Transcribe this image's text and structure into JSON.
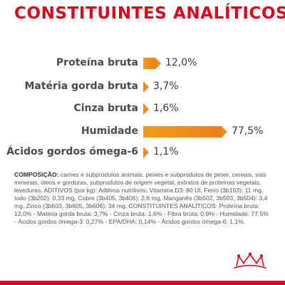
{
  "title": "CONSTITUINTES ANALÍTICOS",
  "nutrients": [
    {
      "label": "Proteína bruta",
      "value_text": "12,0%",
      "value": 12.0
    },
    {
      "label": "Matéria gorda bruta",
      "value_text": "3,7%",
      "value": 3.7
    },
    {
      "label": "Cinza bruta",
      "value_text": "1,6%",
      "value": 1.6
    },
    {
      "label": "Humidade",
      "value_text": "77,5%",
      "value": 77.5
    },
    {
      "label": "Ácidos gordos ómega-6",
      "value_text": "1,1%",
      "value": 1.1
    }
  ],
  "composition": {
    "lead": "COMPOSIÇÃO:",
    "body": " carnes e subprodutos animais, peixes e subprodutos de peixe, cereais, sais minerais, óleos e gorduras, subprodutos de origem vegetal, extratos de proteínas vegetais, leveduras. ADITIVOS (por kg): Aditivos nutritivos: Vitamina D3: 80 UI, Ferro (3b103): 11 mg, Iodo (3b202): 0,33 mg, Cobre (3b405, 3b406): 2,6 mg, Manganês (3b502, 3b503, 3b504): 3,4 mg, Zinco (3b603, 3b605, 3b606): 34 mg. CONSTITUINTES ANALÍTICOS: Proteína bruta: 12,0% - Matéria gorda bruta: 3,7% - Cinza bruta: 1,6% - Fibra bruta: 0,9% - Humidade: 77,5% - Ácidos gordos ómega-3: 0,27% - EPA/DHA: 0,14% - Ácidos gordos ómega-6: 1,1%."
  },
  "colors": {
    "accent": "#e2001a",
    "bar": "#f08a1c"
  },
  "icons": {
    "brand_logo": "royal-crown-icon"
  }
}
